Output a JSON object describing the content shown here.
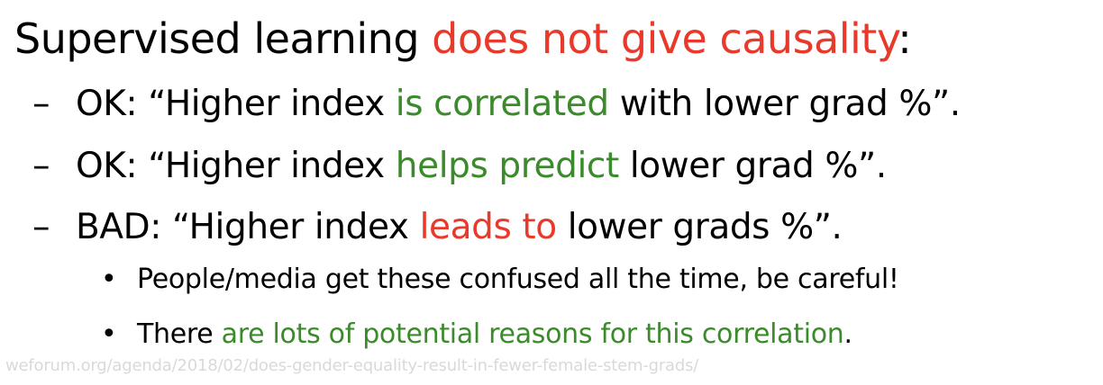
{
  "title": {
    "before": "Supervised learning ",
    "highlight": "does not give causality",
    "after": ":"
  },
  "colors": {
    "red": "#e8392a",
    "green": "#3b8a2b",
    "footer_gray": "#d9d9d9"
  },
  "points": [
    {
      "marker": "–",
      "before": "OK: “Higher index ",
      "highlight": "is correlated",
      "after": " with lower grad %”."
    },
    {
      "marker": "–",
      "before": "OK: “Higher index ",
      "highlight": "helps predict",
      "after": " lower grad %”."
    },
    {
      "marker": "–",
      "before": "BAD: “Higher index ",
      "highlight": "leads to",
      "after": " lower grads %”."
    }
  ],
  "subpoints": [
    {
      "marker": "•",
      "text": "People/media get these confused all the time, be careful!"
    },
    {
      "marker": "•",
      "before": "There ",
      "highlight": "are lots of potential reasons for this correlation",
      "after": "."
    }
  ],
  "footer": {
    "source_text": "weforum.org/agenda/2018/02/does-gender-equality-result-in-fewer-female-stem-grads/"
  }
}
